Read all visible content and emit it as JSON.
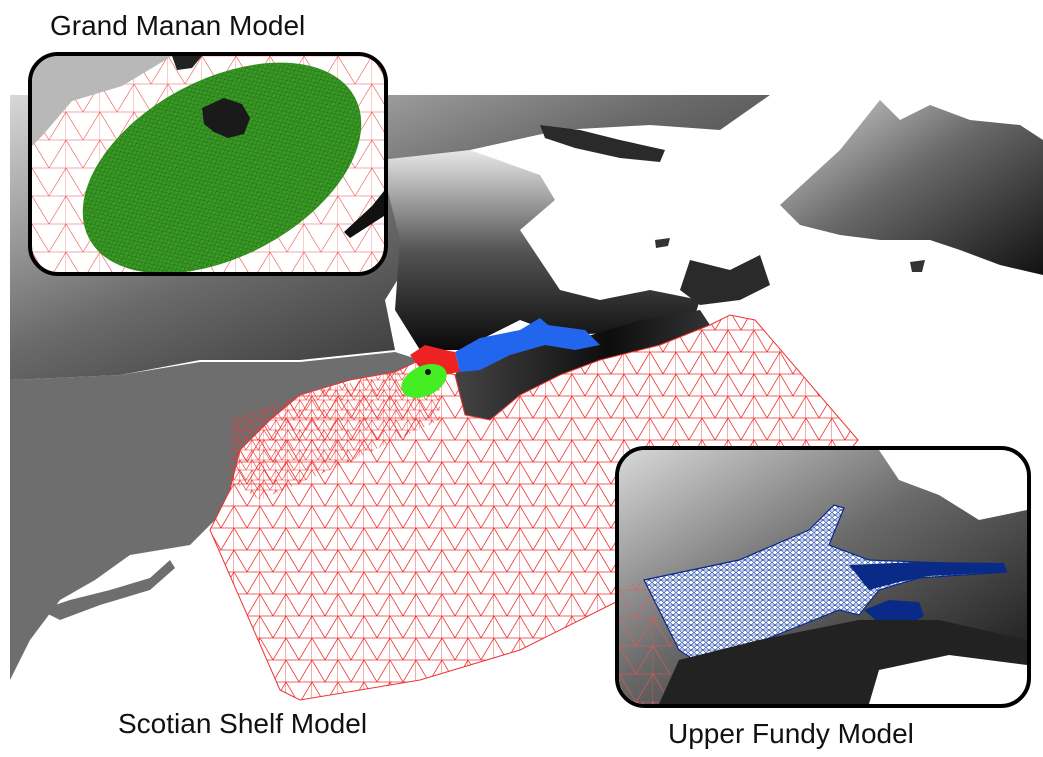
{
  "captions": {
    "grand_manan": "Grand Manan Model",
    "scotian_shelf": "Scotian Shelf Model",
    "upper_fundy": "Upper Fundy Model"
  },
  "colors": {
    "ocean_background": "#ffffff",
    "land_dark": "#1a1a1a",
    "land_gray": "#7a7a7a",
    "us_coast_gray": "#6e6e6e",
    "scotian_mesh": "#ee3333",
    "grand_manan_mesh": "#2f8f1e",
    "grand_manan_marker": "#44ee22",
    "upper_fundy_mesh_main": "#2266ee",
    "upper_fundy_mesh_inset": "#0a2a88",
    "inset_border": "#000000"
  },
  "models": [
    {
      "name": "Scotian Shelf Model",
      "mesh_color": "scotian_mesh"
    },
    {
      "name": "Grand Manan Model",
      "mesh_color": "grand_manan_mesh"
    },
    {
      "name": "Upper Fundy Model",
      "mesh_color": "upper_fundy_mesh_main"
    }
  ]
}
